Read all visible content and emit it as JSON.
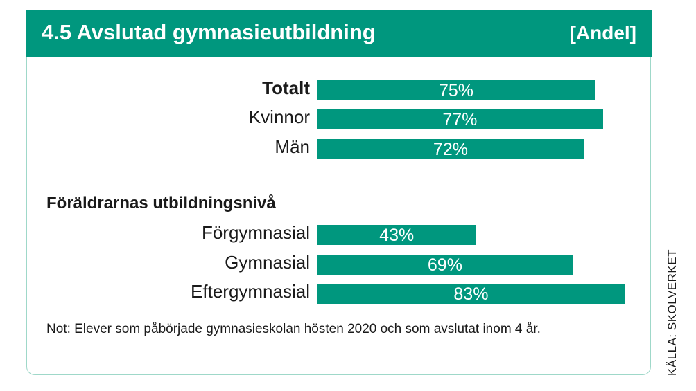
{
  "chart_data": {
    "type": "bar",
    "orientation": "horizontal",
    "title": "4.5  Avslutad gymnasieutbildning",
    "unit_label": "[Andel]",
    "xlim": [
      0,
      100
    ],
    "groups": [
      {
        "title": "",
        "categories": [
          "Totalt",
          "Kvinnor",
          "Män"
        ],
        "values": [
          75,
          77,
          72
        ],
        "labels": [
          "75%",
          "77%",
          "72%"
        ],
        "bold": [
          true,
          false,
          false
        ]
      },
      {
        "title": "Föräldrarnas utbildningsnivå",
        "categories": [
          "Förgymnasial",
          "Gymnasial",
          "Eftergymnasial"
        ],
        "values": [
          43,
          69,
          83
        ],
        "labels": [
          "43%",
          "69%",
          "83%"
        ],
        "bold": [
          false,
          false,
          false
        ]
      }
    ],
    "note": "Not: Elever som påbörjade gymnasieskolan hösten 2020 och som avslutat inom 4 år.",
    "source": "KÄLLA: SKOLVERKET"
  },
  "colors": {
    "bar": "#00977e",
    "header": "#00977e"
  }
}
